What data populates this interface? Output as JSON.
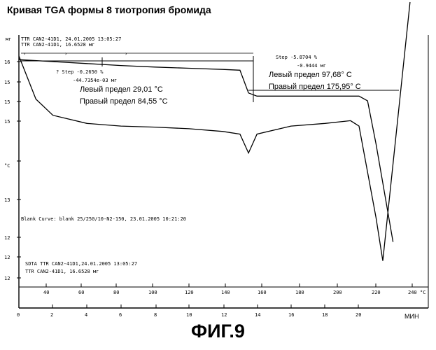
{
  "title": "Кривая TGA формы 8 тиотропия бромида",
  "caption": "ФИГ.9",
  "header_lines": [
    "TTR CAN2-41D1, 24.01.2005 13:05:27",
    "TTR CAN2-41D1, 16.6528 мг"
  ],
  "y_unit": "мг",
  "y2_unit": "°C",
  "y_ticks": [
    "16",
    "15",
    "15",
    "15",
    "°C",
    "13",
    "12",
    "12",
    "12"
  ],
  "blank_curve": "Blank Curve: blank 25/250/10-N2-150, 23.01.2005 10:21:20",
  "sdta_lines": [
    "SDTA TTR CAN2-41D1,24.01.2005 13:05:27",
    "TTR CAN2-41D1, 16.6528 мг"
  ],
  "step1": {
    "step": "? Step -0.2650 %",
    "mass": "-44.7354e-03 мг",
    "left": "Левый предел 29,01 °C",
    "right": "Правый предел 84,55 °C"
  },
  "step2": {
    "step": "Step -5.8704 %",
    "mass": "-0.9444 мг",
    "left": "Левый предел 97,68° C",
    "right": "Правый предел 175,95° C"
  },
  "temp_ticks": [
    "40",
    "60",
    "80",
    "100",
    "120",
    "140",
    "160",
    "180",
    "200",
    "220",
    "240",
    "°C"
  ],
  "min_ticks": [
    "0",
    "2",
    "4",
    "6",
    "8",
    "10",
    "12",
    "14",
    "16",
    "18",
    "20",
    "МИН"
  ],
  "chart_data": {
    "type": "line",
    "title": "Кривая TGA формы 8 тиотропия бромида",
    "xlabel": "МИН",
    "ylabel": "мг",
    "xlim": [
      0,
      23
    ],
    "series": [
      {
        "name": "TGA TTR CAN2-41D1 (16.6528 мг)",
        "x": [
          0,
          2,
          4,
          6,
          8,
          10,
          12,
          13,
          13.5,
          14,
          16,
          18,
          20,
          20.5,
          21,
          22
        ],
        "y": [
          16.65,
          16.6,
          16.55,
          16.5,
          16.46,
          16.43,
          16.4,
          16.38,
          15.8,
          15.72,
          15.72,
          15.72,
          15.72,
          15.6,
          14.5,
          12.0
        ]
      },
      {
        "name": "SDTA",
        "x": [
          0,
          1,
          2,
          4,
          6,
          8,
          10,
          12,
          13,
          13.5,
          14,
          16,
          18,
          19.5,
          20,
          21,
          21.4,
          22,
          23
        ],
        "y": [
          0.0,
          -0.8,
          -1.1,
          -1.25,
          -1.3,
          -1.32,
          -1.35,
          -1.4,
          -1.45,
          -1.8,
          -1.45,
          -1.3,
          -1.25,
          -1.2,
          -1.3,
          -3.0,
          -3.8,
          -2.0,
          1.0
        ]
      }
    ],
    "temperature_axis": {
      "label": "°C",
      "ticks": [
        40,
        60,
        80,
        100,
        120,
        140,
        160,
        180,
        200,
        220,
        240
      ]
    },
    "time_axis": {
      "label": "МИН",
      "ticks": [
        0,
        2,
        4,
        6,
        8,
        10,
        12,
        14,
        16,
        18,
        20
      ]
    },
    "annotations": [
      "? Step -0.2650 % -44.7354e-03 мг, Левый предел 29,01 °C, Правый предел 84,55 °C",
      "Step -5.8704 % -0.9444 мг, Левый предел 97,68° C, Правый предел 175,95° C"
    ]
  }
}
